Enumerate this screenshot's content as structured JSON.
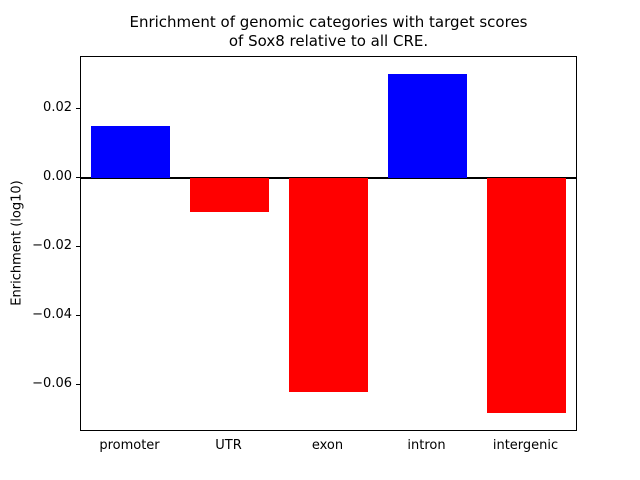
{
  "chart_data": {
    "type": "bar",
    "title": "Enrichment of genomic categories with target scores of Sox8 relative to all CRE.",
    "title_lines": [
      "Enrichment of genomic categories with target scores",
      "of Sox8 relative to all CRE."
    ],
    "xlabel": "",
    "ylabel": "Enrichment (log10)",
    "categories": [
      "promoter",
      "UTR",
      "exon",
      "intron",
      "intergenic"
    ],
    "values": [
      0.015,
      -0.01,
      -0.062,
      0.03,
      -0.068
    ],
    "colors": {
      "positive": "#0000ff",
      "negative": "#ff0000"
    },
    "ylim": [
      -0.0729,
      0.0349
    ],
    "yticks": [
      {
        "value": 0.02,
        "label": "0.02"
      },
      {
        "value": 0.0,
        "label": "0.00"
      },
      {
        "value": -0.02,
        "label": "−0.02"
      },
      {
        "value": -0.04,
        "label": "−0.04"
      },
      {
        "value": -0.06,
        "label": "−0.06"
      }
    ],
    "bar_width_fraction": 0.8,
    "zero_line": true,
    "grid": false,
    "legend_position": "none"
  }
}
